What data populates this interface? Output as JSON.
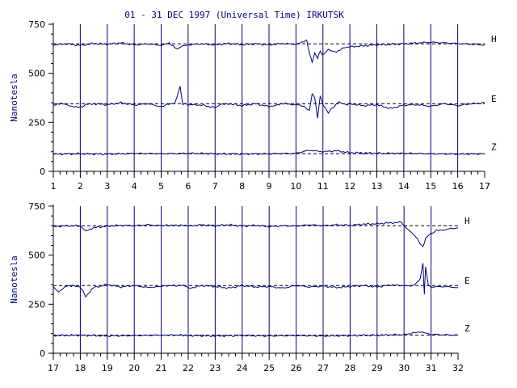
{
  "title": "01 - 31 DEC 1997 (Universal Time) IRKUTSK",
  "colors": {
    "trace": "#000080",
    "axis": "#000000",
    "grid": "#000080",
    "text": "#000080"
  },
  "chart_data": [
    {
      "type": "line",
      "ylabel": "Nanotesla",
      "ylim": [
        0,
        750
      ],
      "yticks": [
        "0",
        "250",
        "500",
        "750"
      ],
      "xlim": [
        1,
        17
      ],
      "xticks": [
        "1",
        "2",
        "3",
        "4",
        "5",
        "6",
        "7",
        "8",
        "9",
        "10",
        "11",
        "12",
        "13",
        "14",
        "15",
        "16",
        "17"
      ],
      "grid": "vertical dashed at each day",
      "series": [
        {
          "name": "H",
          "baseline": 650,
          "points": [
            [
              1,
              645
            ],
            [
              1.5,
              650
            ],
            [
              2,
              642
            ],
            [
              2.5,
              652
            ],
            [
              3,
              648
            ],
            [
              3.5,
              655
            ],
            [
              4,
              645
            ],
            [
              4.5,
              650
            ],
            [
              5,
              643
            ],
            [
              5.3,
              652
            ],
            [
              5.6,
              625
            ],
            [
              5.8,
              640
            ],
            [
              6,
              645
            ],
            [
              6.5,
              650
            ],
            [
              7,
              645
            ],
            [
              7.5,
              652
            ],
            [
              8,
              646
            ],
            [
              8.5,
              650
            ],
            [
              9,
              645
            ],
            [
              9.5,
              652
            ],
            [
              10,
              648
            ],
            [
              10.3,
              660
            ],
            [
              10.4,
              670
            ],
            [
              10.5,
              600
            ],
            [
              10.6,
              560
            ],
            [
              10.7,
              600
            ],
            [
              10.8,
              580
            ],
            [
              10.9,
              610
            ],
            [
              11,
              595
            ],
            [
              11.2,
              620
            ],
            [
              11.5,
              610
            ],
            [
              11.8,
              630
            ],
            [
              12,
              635
            ],
            [
              12.5,
              640
            ],
            [
              13,
              645
            ],
            [
              13.5,
              648
            ],
            [
              14,
              650
            ],
            [
              14.5,
              655
            ],
            [
              15,
              658
            ],
            [
              15.5,
              655
            ],
            [
              16,
              652
            ],
            [
              16.5,
              648
            ],
            [
              17,
              645
            ]
          ]
        },
        {
          "name": "E",
          "baseline": 345,
          "points": [
            [
              1,
              340
            ],
            [
              1.3,
              345
            ],
            [
              1.6,
              335
            ],
            [
              2,
              325
            ],
            [
              2.2,
              340
            ],
            [
              2.5,
              345
            ],
            [
              3,
              340
            ],
            [
              3.5,
              350
            ],
            [
              4,
              338
            ],
            [
              4.5,
              345
            ],
            [
              5,
              330
            ],
            [
              5.2,
              340
            ],
            [
              5.5,
              345
            ],
            [
              5.7,
              430
            ],
            [
              5.8,
              345
            ],
            [
              6,
              340
            ],
            [
              6.5,
              338
            ],
            [
              7,
              325
            ],
            [
              7.2,
              340
            ],
            [
              7.5,
              345
            ],
            [
              8,
              335
            ],
            [
              8.5,
              345
            ],
            [
              9,
              330
            ],
            [
              9.3,
              340
            ],
            [
              9.6,
              345
            ],
            [
              10,
              340
            ],
            [
              10.3,
              330
            ],
            [
              10.5,
              310
            ],
            [
              10.6,
              395
            ],
            [
              10.7,
              375
            ],
            [
              10.8,
              270
            ],
            [
              10.9,
              385
            ],
            [
              11,
              340
            ],
            [
              11.2,
              300
            ],
            [
              11.4,
              330
            ],
            [
              11.6,
              355
            ],
            [
              11.8,
              340
            ],
            [
              12,
              345
            ],
            [
              12.5,
              335
            ],
            [
              13,
              340
            ],
            [
              13.5,
              320
            ],
            [
              14,
              338
            ],
            [
              14.5,
              340
            ],
            [
              15,
              332
            ],
            [
              15.5,
              345
            ],
            [
              16,
              335
            ],
            [
              16.5,
              345
            ],
            [
              17,
              350
            ]
          ]
        },
        {
          "name": "Z",
          "baseline": 90,
          "points": [
            [
              1,
              88
            ],
            [
              2,
              90
            ],
            [
              3,
              88
            ],
            [
              4,
              92
            ],
            [
              5,
              90
            ],
            [
              6,
              92
            ],
            [
              7,
              90
            ],
            [
              8,
              88
            ],
            [
              9,
              90
            ],
            [
              10,
              92
            ],
            [
              10.5,
              108
            ],
            [
              11,
              100
            ],
            [
              11.5,
              105
            ],
            [
              12,
              95
            ],
            [
              13,
              92
            ],
            [
              14,
              92
            ],
            [
              15,
              90
            ],
            [
              16,
              88
            ],
            [
              17,
              90
            ]
          ]
        }
      ],
      "component_labels": [
        "H",
        "E",
        "Z"
      ]
    },
    {
      "type": "line",
      "ylabel": "Nanotesla",
      "ylim": [
        0,
        750
      ],
      "yticks": [
        "0",
        "250",
        "500",
        "750"
      ],
      "xlim": [
        17,
        32
      ],
      "xticks": [
        "17",
        "18",
        "19",
        "20",
        "21",
        "22",
        "23",
        "24",
        "25",
        "26",
        "27",
        "28",
        "29",
        "30",
        "31",
        "32"
      ],
      "grid": "vertical dashed at each day",
      "series": [
        {
          "name": "H",
          "baseline": 650,
          "points": [
            [
              17,
              645
            ],
            [
              17.5,
              650
            ],
            [
              18,
              648
            ],
            [
              18.2,
              625
            ],
            [
              18.5,
              640
            ],
            [
              19,
              648
            ],
            [
              19.5,
              652
            ],
            [
              20,
              650
            ],
            [
              20.5,
              655
            ],
            [
              21,
              650
            ],
            [
              21.2,
              652
            ],
            [
              21.9,
              652
            ],
            [
              22,
              648
            ],
            [
              22.5,
              655
            ],
            [
              23,
              650
            ],
            [
              23.5,
              655
            ],
            [
              24,
              648
            ],
            [
              24.5,
              652
            ],
            [
              25,
              645
            ],
            [
              25.5,
              650
            ],
            [
              26,
              648
            ],
            [
              26.5,
              655
            ],
            [
              27,
              650
            ],
            [
              27.5,
              655
            ],
            [
              28,
              652
            ],
            [
              28.5,
              658
            ],
            [
              29,
              660
            ],
            [
              29.5,
              665
            ],
            [
              29.9,
              668
            ],
            [
              30,
              650
            ],
            [
              30.2,
              625
            ],
            [
              30.4,
              600
            ],
            [
              30.6,
              560
            ],
            [
              30.7,
              540
            ],
            [
              30.8,
              590
            ],
            [
              31,
              610
            ],
            [
              31.2,
              625
            ],
            [
              31.5,
              630
            ],
            [
              32,
              640
            ]
          ]
        },
        {
          "name": "E",
          "baseline": 345,
          "points": [
            [
              17,
              340
            ],
            [
              17.2,
              310
            ],
            [
              17.5,
              345
            ],
            [
              18,
              340
            ],
            [
              18.2,
              290
            ],
            [
              18.5,
              335
            ],
            [
              19,
              350
            ],
            [
              19.5,
              338
            ],
            [
              20,
              345
            ],
            [
              20.5,
              335
            ],
            [
              21,
              340
            ],
            [
              21.2,
              345
            ],
            [
              21.9,
              345
            ],
            [
              22,
              330
            ],
            [
              22.5,
              345
            ],
            [
              23,
              340
            ],
            [
              23.5,
              332
            ],
            [
              24,
              345
            ],
            [
              24.5,
              338
            ],
            [
              25,
              340
            ],
            [
              25.5,
              332
            ],
            [
              26,
              345
            ],
            [
              26.5,
              338
            ],
            [
              27,
              342
            ],
            [
              27.5,
              335
            ],
            [
              28,
              340
            ],
            [
              28.5,
              345
            ],
            [
              29,
              338
            ],
            [
              29.5,
              348
            ],
            [
              30,
              345
            ],
            [
              30.3,
              340
            ],
            [
              30.5,
              365
            ],
            [
              30.6,
              380
            ],
            [
              30.7,
              460
            ],
            [
              30.75,
              300
            ],
            [
              30.8,
              440
            ],
            [
              30.9,
              345
            ],
            [
              31,
              338
            ],
            [
              31.5,
              340
            ],
            [
              32,
              335
            ]
          ]
        },
        {
          "name": "Z",
          "baseline": 92,
          "points": [
            [
              17,
              90
            ],
            [
              18,
              92
            ],
            [
              19,
              88
            ],
            [
              20,
              90
            ],
            [
              21,
              92
            ],
            [
              21.2,
              92
            ],
            [
              21.9,
              92
            ],
            [
              22,
              90
            ],
            [
              23,
              88
            ],
            [
              24,
              90
            ],
            [
              25,
              88
            ],
            [
              26,
              90
            ],
            [
              27,
              88
            ],
            [
              28,
              90
            ],
            [
              29,
              92
            ],
            [
              30,
              95
            ],
            [
              30.6,
              110
            ],
            [
              30.9,
              98
            ],
            [
              31,
              96
            ],
            [
              32,
              92
            ]
          ]
        }
      ],
      "component_labels": [
        "H",
        "E",
        "Z"
      ]
    }
  ]
}
